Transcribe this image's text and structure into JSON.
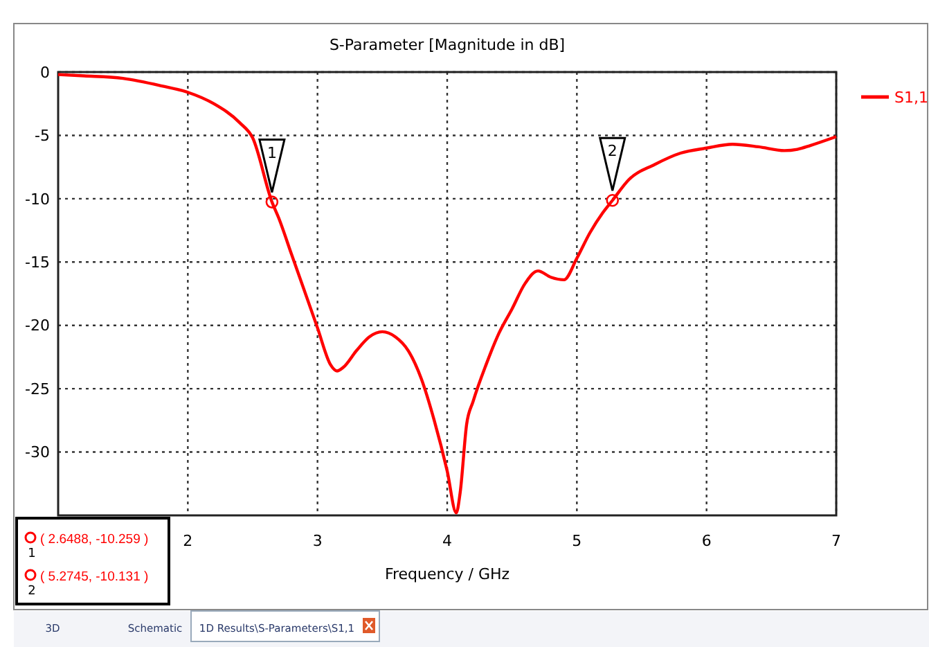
{
  "chart_data": {
    "type": "line",
    "title": "S-Parameter [Magnitude in dB]",
    "xlabel": "Frequency / GHz",
    "x": [
      1.0,
      1.2,
      1.5,
      1.8,
      2.0,
      2.2,
      2.4,
      2.5,
      2.6488,
      2.7,
      2.8,
      2.9,
      3.0,
      3.1,
      3.15,
      3.2,
      3.3,
      3.4,
      3.5,
      3.6,
      3.7,
      3.8,
      3.9,
      4.0,
      4.07,
      4.1,
      4.15,
      4.2,
      4.3,
      4.4,
      4.5,
      4.6,
      4.7,
      4.8,
      4.9,
      5.0,
      5.1,
      5.2,
      5.2745,
      5.4,
      5.6,
      5.8,
      6.0,
      6.2,
      6.4,
      6.6,
      6.7,
      6.8,
      7.0
    ],
    "series": [
      {
        "name": "S1,1",
        "color": "#ff0000",
        "values": [
          -0.2,
          -0.3,
          -0.5,
          -1.1,
          -1.6,
          -2.5,
          -4.0,
          -5.2,
          -10.259,
          -11.5,
          -14.4,
          -17.3,
          -20.2,
          -23.1,
          -23.6,
          -23.3,
          -22.0,
          -20.9,
          -20.5,
          -20.9,
          -22.0,
          -24.2,
          -27.5,
          -31.5,
          -34.8,
          -33.2,
          -27.8,
          -26.0,
          -23.1,
          -20.6,
          -18.7,
          -16.7,
          -15.7,
          -16.2,
          -16.4,
          -14.7,
          -12.7,
          -11.1,
          -10.131,
          -8.5,
          -7.3,
          -6.4,
          -6.0,
          -5.7,
          -5.9,
          -6.2,
          -6.1,
          -5.8,
          -5.1
        ]
      }
    ],
    "xlim": [
      1,
      7
    ],
    "xticks": [
      2,
      3,
      4,
      5,
      6,
      7
    ],
    "ylim": [
      -35,
      0
    ],
    "yticks": [
      0,
      -5,
      -10,
      -15,
      -20,
      -25,
      -30
    ],
    "grid": true,
    "legend": "right",
    "marker": "none",
    "line_style": "solid",
    "annotations": [
      {
        "text": "1",
        "x": 2.6488,
        "y": -10.259
      },
      {
        "text": "2",
        "x": 5.2745,
        "y": -10.131
      },
      "( 2.6488, -10.259 )",
      "( 5.2745, -10.131 )",
      "3D",
      "Schematic",
      "1D Results\\S-Parameters\\S1,1"
    ]
  }
}
